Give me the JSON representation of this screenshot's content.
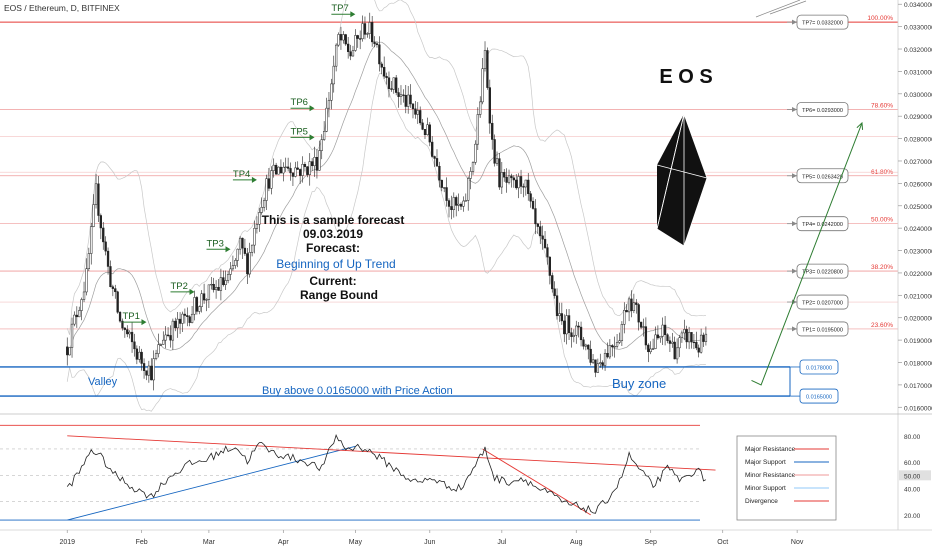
{
  "header": {
    "symbol_line": "EOS / Ethereum, D, BITFINEX"
  },
  "chart_data": [
    {
      "type": "line",
      "subtype": "candlestick_with_forecast",
      "title": "EOS / Ethereum, D, BITFINEX",
      "x_tick_labels": [
        "2019",
        "Feb",
        "Mar",
        "Apr",
        "May",
        "Jun",
        "Jul",
        "Aug",
        "Sep",
        "Oct",
        "Nov"
      ],
      "y_tick_labels": [
        "0.0340000",
        "0.0330000",
        "0.0320000",
        "0.0310000",
        "0.0300000",
        "0.0290000",
        "0.0280000",
        "0.0270000",
        "0.0260000",
        "0.0250000",
        "0.0240000",
        "0.0230000",
        "0.0220000",
        "0.0210000",
        "0.0200000",
        "0.0190000",
        "0.0180000",
        "0.0170000",
        "0.0160000"
      ],
      "ylim": [
        0.0157,
        0.0341
      ],
      "price_path": [
        {
          "day": 0,
          "price": 0.0187
        },
        {
          "day": 8,
          "price": 0.0218
        },
        {
          "day": 12,
          "price": 0.0256
        },
        {
          "day": 17,
          "price": 0.0222
        },
        {
          "day": 22,
          "price": 0.0198
        },
        {
          "day": 30,
          "price": 0.0182
        },
        {
          "day": 35,
          "price": 0.0176
        },
        {
          "day": 40,
          "price": 0.0192
        },
        {
          "day": 48,
          "price": 0.0198
        },
        {
          "day": 55,
          "price": 0.0208
        },
        {
          "day": 62,
          "price": 0.0213
        },
        {
          "day": 68,
          "price": 0.0218
        },
        {
          "day": 72,
          "price": 0.0232
        },
        {
          "day": 75,
          "price": 0.0224
        },
        {
          "day": 80,
          "price": 0.025
        },
        {
          "day": 84,
          "price": 0.0262
        },
        {
          "day": 90,
          "price": 0.0268
        },
        {
          "day": 98,
          "price": 0.0266
        },
        {
          "day": 104,
          "price": 0.027
        },
        {
          "day": 108,
          "price": 0.0292
        },
        {
          "day": 113,
          "price": 0.0325
        },
        {
          "day": 118,
          "price": 0.0318
        },
        {
          "day": 124,
          "price": 0.033
        },
        {
          "day": 128,
          "price": 0.0325
        },
        {
          "day": 132,
          "price": 0.031
        },
        {
          "day": 138,
          "price": 0.03
        },
        {
          "day": 144,
          "price": 0.0293
        },
        {
          "day": 150,
          "price": 0.0282
        },
        {
          "day": 155,
          "price": 0.0265
        },
        {
          "day": 160,
          "price": 0.025
        },
        {
          "day": 165,
          "price": 0.0248
        },
        {
          "day": 170,
          "price": 0.0278
        },
        {
          "day": 172,
          "price": 0.0298
        },
        {
          "day": 174,
          "price": 0.0318
        },
        {
          "day": 177,
          "price": 0.0278
        },
        {
          "day": 180,
          "price": 0.0262
        },
        {
          "day": 186,
          "price": 0.0258
        },
        {
          "day": 190,
          "price": 0.0262
        },
        {
          "day": 195,
          "price": 0.024
        },
        {
          "day": 200,
          "price": 0.0225
        },
        {
          "day": 205,
          "price": 0.0198
        },
        {
          "day": 210,
          "price": 0.0196
        },
        {
          "day": 215,
          "price": 0.019
        },
        {
          "day": 220,
          "price": 0.0178
        },
        {
          "day": 224,
          "price": 0.0184
        },
        {
          "day": 230,
          "price": 0.0193
        },
        {
          "day": 234,
          "price": 0.021
        },
        {
          "day": 238,
          "price": 0.02
        },
        {
          "day": 243,
          "price": 0.0186
        },
        {
          "day": 248,
          "price": 0.0193
        },
        {
          "day": 253,
          "price": 0.0186
        },
        {
          "day": 258,
          "price": 0.0192
        },
        {
          "day": 263,
          "price": 0.0187
        },
        {
          "day": 266,
          "price": 0.019
        }
      ],
      "forecast_path": [
        {
          "day": 285,
          "price": 0.0172
        },
        {
          "day": 289,
          "price": 0.017
        },
        {
          "day": 331,
          "price": 0.0287
        }
      ],
      "fibonacci_levels": [
        {
          "label": "100.00%",
          "price": 0.0332
        },
        {
          "label": "78.60%",
          "price": 0.0293
        },
        {
          "label": "61.80%",
          "price": 0.02634
        },
        {
          "label": "50.00%",
          "price": 0.0242
        },
        {
          "label": "38.20%",
          "price": 0.02208
        },
        {
          "label": "23.60%",
          "price": 0.0195
        }
      ],
      "minor_levels": [
        0.0221,
        0.0207,
        0.0265,
        0.0281
      ],
      "targets": [
        {
          "label": "TP1",
          "box": "TP1= 0.0195000",
          "price": 0.0195,
          "marker_day": 33,
          "marker_price": 0.01985
        },
        {
          "label": "TP2",
          "box": "TP2= 0.0207000",
          "price": 0.0207,
          "marker_day": 53,
          "marker_price": 0.0212
        },
        {
          "label": "TP3",
          "box": "TP3= 0.0220800",
          "price": 0.02208,
          "marker_day": 68,
          "marker_price": 0.0231
        },
        {
          "label": "TP4",
          "box": "TP4= 0.0242000",
          "price": 0.0242,
          "marker_day": 79,
          "marker_price": 0.0262
        },
        {
          "label": "TP5",
          "box": "TP5= 0.0263420",
          "price": 0.02634,
          "marker_day": 103,
          "marker_price": 0.0281
        },
        {
          "label": "TP6",
          "box": "TP6= 0.0293000",
          "price": 0.0293,
          "marker_day": 103,
          "marker_price": 0.0294
        },
        {
          "label": "TP7",
          "box": "TP7= 0.0332000",
          "price": 0.0332,
          "marker_day": 120,
          "marker_price": 0.0336
        }
      ],
      "zone_levels": [
        {
          "label": "0.0178000",
          "price": 0.0178
        },
        {
          "label": "0.0165000",
          "price": 0.0165
        }
      ],
      "annotations": {
        "forecast_lines": [
          "This is a sample forecast",
          "09.03.2019",
          "Forecast:",
          "Beginning of Up Trend",
          "Current:",
          "Range Bound"
        ],
        "valley": "Valley",
        "buy_above": "Buy above 0.0165000 with Price Action",
        "buy_zone": "Buy zone",
        "logo_text": "E O S"
      }
    },
    {
      "type": "line",
      "subtype": "oscillator",
      "y_tick_labels": [
        "80.00",
        "60.00",
        "50.00",
        "40.00",
        "20.00"
      ],
      "ylim": [
        10,
        92
      ],
      "values": [
        {
          "day": 0,
          "value": 40
        },
        {
          "day": 6,
          "value": 55
        },
        {
          "day": 10,
          "value": 70
        },
        {
          "day": 14,
          "value": 64
        },
        {
          "day": 20,
          "value": 50
        },
        {
          "day": 28,
          "value": 40
        },
        {
          "day": 35,
          "value": 34
        },
        {
          "day": 42,
          "value": 48
        },
        {
          "day": 50,
          "value": 58
        },
        {
          "day": 58,
          "value": 62
        },
        {
          "day": 64,
          "value": 68
        },
        {
          "day": 70,
          "value": 72
        },
        {
          "day": 75,
          "value": 61
        },
        {
          "day": 80,
          "value": 74
        },
        {
          "day": 86,
          "value": 67
        },
        {
          "day": 92,
          "value": 64
        },
        {
          "day": 100,
          "value": 60
        },
        {
          "day": 106,
          "value": 55
        },
        {
          "day": 112,
          "value": 80
        },
        {
          "day": 116,
          "value": 70
        },
        {
          "day": 122,
          "value": 72
        },
        {
          "day": 128,
          "value": 66
        },
        {
          "day": 134,
          "value": 58
        },
        {
          "day": 140,
          "value": 50
        },
        {
          "day": 146,
          "value": 44
        },
        {
          "day": 152,
          "value": 48
        },
        {
          "day": 158,
          "value": 42
        },
        {
          "day": 164,
          "value": 40
        },
        {
          "day": 169,
          "value": 55
        },
        {
          "day": 174,
          "value": 70
        },
        {
          "day": 178,
          "value": 48
        },
        {
          "day": 184,
          "value": 45
        },
        {
          "day": 190,
          "value": 48
        },
        {
          "day": 196,
          "value": 40
        },
        {
          "day": 202,
          "value": 35
        },
        {
          "day": 208,
          "value": 28
        },
        {
          "day": 214,
          "value": 26
        },
        {
          "day": 220,
          "value": 22
        },
        {
          "day": 225,
          "value": 32
        },
        {
          "day": 230,
          "value": 45
        },
        {
          "day": 234,
          "value": 65
        },
        {
          "day": 238,
          "value": 55
        },
        {
          "day": 244,
          "value": 42
        },
        {
          "day": 250,
          "value": 55
        },
        {
          "day": 256,
          "value": 46
        },
        {
          "day": 262,
          "value": 55
        },
        {
          "day": 266,
          "value": 46
        }
      ],
      "trendlines": [
        {
          "color": "#1565c0",
          "from": {
            "day": 0,
            "value": 16
          },
          "to": {
            "day": 120,
            "value": 72
          }
        },
        {
          "color": "#e53935",
          "from": {
            "day": 0,
            "value": 80
          },
          "to": {
            "day": 270,
            "value": 54
          }
        },
        {
          "color": "#e53935",
          "from": {
            "day": 173,
            "value": 70
          },
          "to": {
            "day": 218,
            "value": 20
          }
        }
      ],
      "horizontal_levels": [
        {
          "value": 88,
          "color": "#e53935"
        },
        {
          "value": 70,
          "color": "#bdbdbd"
        },
        {
          "value": 50,
          "color": "#bdbdbd"
        },
        {
          "value": 30,
          "color": "#bdbdbd"
        },
        {
          "value": 16,
          "color": "#1565c0"
        }
      ],
      "legend": [
        {
          "label": "Major Resistance",
          "color": "#e53935"
        },
        {
          "label": "Major Support",
          "color": "#1565c0"
        },
        {
          "label": "Minor Resistance",
          "color": "#ef9a9a"
        },
        {
          "label": "Minor Support",
          "color": "#90caf9"
        },
        {
          "label": "Divergence",
          "color": "#e53935"
        }
      ]
    }
  ],
  "colors": {
    "major_resistance": "#e53935",
    "major_support": "#1565c0",
    "forecast_arrow": "#2e7d32",
    "target_arrow": "#2e7d32",
    "candle": "#222222",
    "band": "#c8c8c8",
    "highlight_text": "#1565c0"
  }
}
